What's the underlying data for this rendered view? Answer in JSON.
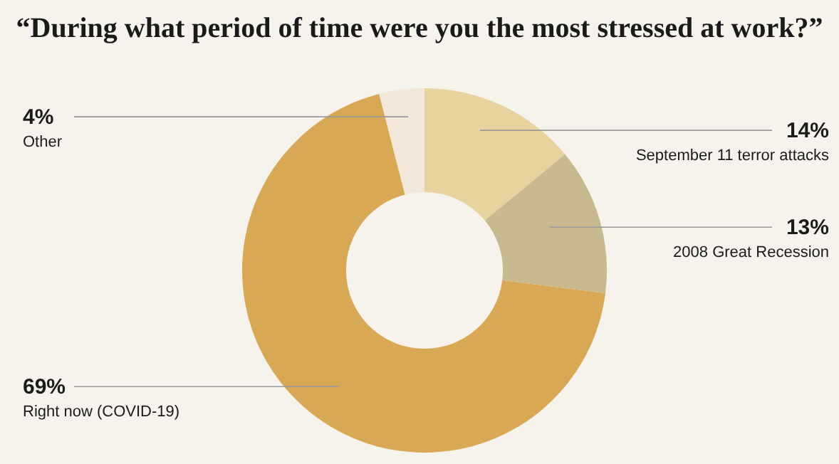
{
  "chart_data": {
    "type": "donut",
    "title": "“During what period of time were you the most stressed at work?”",
    "categories": [
      "September 11 terror attacks",
      "2008 Great Recession",
      "Right now (COVID-19)",
      "Other"
    ],
    "values": [
      14,
      13,
      69,
      4
    ],
    "value_labels": [
      "14%",
      "13%",
      "69%",
      "4%"
    ],
    "colors": [
      "#e6d39d",
      "#c9b98f",
      "#d9a854",
      "#f1e8da"
    ]
  }
}
